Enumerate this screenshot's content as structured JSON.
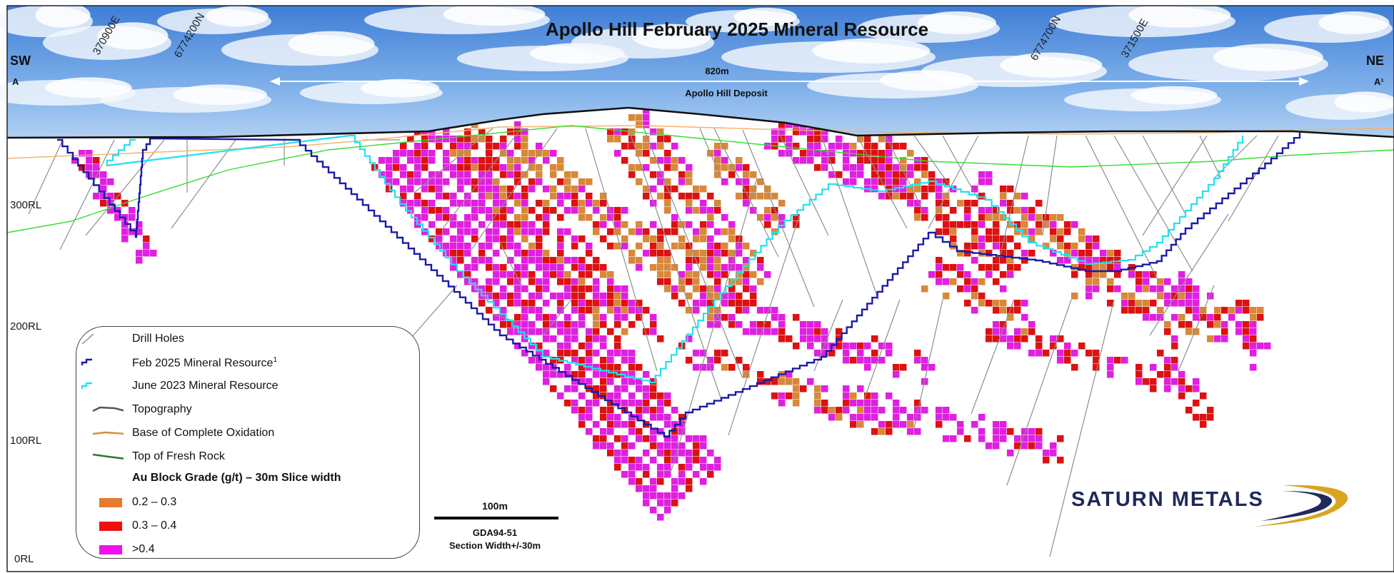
{
  "title": "Apollo Hill February 2025 Mineral Resource",
  "directions": {
    "left": "SW",
    "right": "NE",
    "left_point": "A",
    "right_point": "A¹"
  },
  "span": {
    "length": "820m",
    "deposit": "Apollo Hill Deposit"
  },
  "grid_coords": [
    "370900E",
    "6774200N",
    "6774700N",
    "371500E"
  ],
  "rl_labels": [
    "300RL",
    "200RL",
    "100RL",
    "0RL"
  ],
  "legend": {
    "items": [
      {
        "label": "Drill Holes",
        "icon": "drill-hole-line",
        "color": "#a8a8a8"
      },
      {
        "label": "Feb 2025 Mineral Resource",
        "sup": "1",
        "icon": "step-line",
        "color": "#1a1aa8"
      },
      {
        "label": "June 2023 Mineral Resource",
        "icon": "step-line",
        "color": "#22e0f0"
      },
      {
        "label": "Topography",
        "icon": "line",
        "color": "#555555"
      },
      {
        "label": "Base of Complete Oxidation",
        "icon": "line",
        "color": "#d88a3a"
      },
      {
        "label": "Top of Fresh Rock",
        "icon": "line",
        "color": "#2a7a2a"
      }
    ],
    "grade_heading": "Au Block Grade (g/t) – 30m Slice width",
    "grades": [
      {
        "label": "0.2 – 0.3",
        "color": "#e87a2e"
      },
      {
        "label": "0.3 – 0.4",
        "color": "#ee1111"
      },
      {
        "label": ">0.4",
        "color": "#ee11ee"
      }
    ]
  },
  "scale_bar": {
    "label": "100m",
    "datum": "GDA94-51",
    "section_width": "Section Width+/-30m"
  },
  "logo": {
    "text": "SATURN METALS"
  },
  "colors": {
    "sky_top": "#4a86d8",
    "sky_bottom": "#a8c8ee",
    "topography": "#111111",
    "feb_2025": "#1a1aa8",
    "june_2023": "#22e0f0",
    "oxidation": "#f0b060",
    "fresh_rock": "#33dd33",
    "drill": "#9a9a9a",
    "block_low": "#d8883a",
    "block_mid": "#dd1111",
    "block_high": "#e020e0"
  }
}
